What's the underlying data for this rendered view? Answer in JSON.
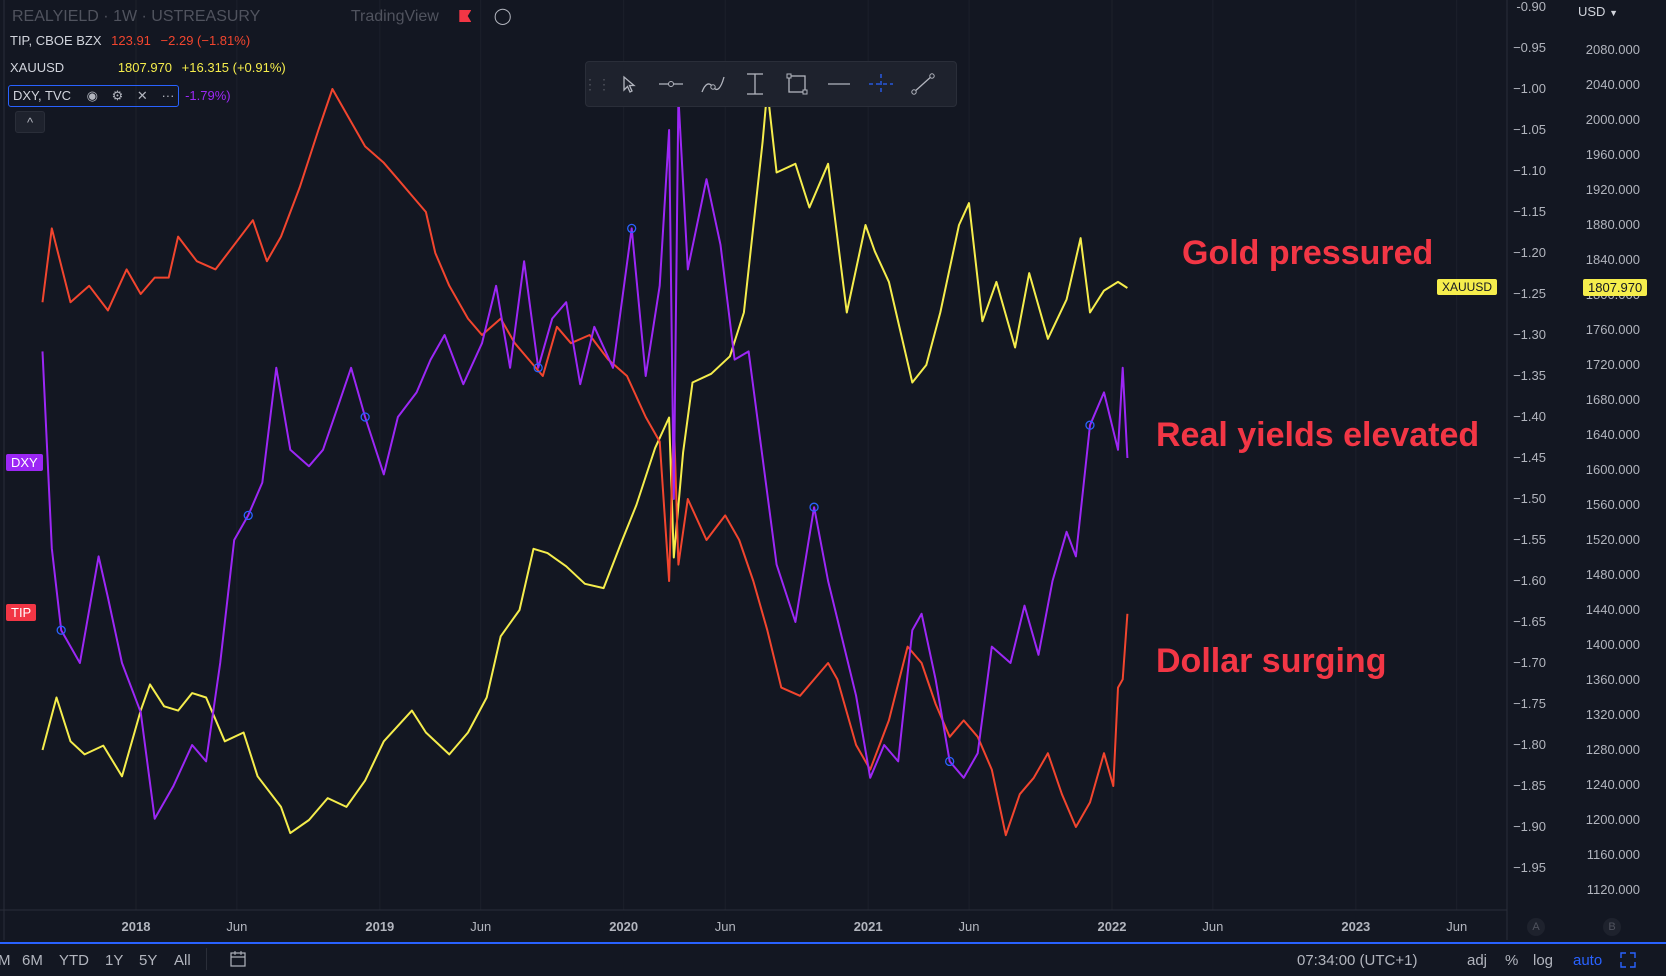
{
  "header": {
    "title": "REALYIELD · 1W · USTREASURY",
    "watermark": "TradingView",
    "tip_legend": {
      "symbol": "TIP, CBOE BZX",
      "price": "123.91",
      "change": "−2.29 (−1.81%)"
    },
    "xau_legend": {
      "symbol": "XAUUSD",
      "price": "1807.970",
      "change": "+16.315 (+0.91%)"
    },
    "dxy_legend": {
      "symbol": "DXY, TVC",
      "change": "-1.79%)"
    },
    "collapse_label": "^"
  },
  "price_axis": {
    "currency": "USD",
    "left_labels": [
      "-0.90",
      "−0.95",
      "−1.00",
      "−1.05",
      "−1.10",
      "−1.15",
      "−1.20",
      "−1.25",
      "−1.30",
      "−1.35",
      "−1.40",
      "−1.45",
      "−1.50",
      "−1.55",
      "−1.60",
      "−1.65",
      "−1.70",
      "−1.75",
      "−1.80",
      "−1.85",
      "−1.90",
      "−1.95"
    ],
    "right_labels": [
      "2080.000",
      "2040.000",
      "2000.000",
      "1960.000",
      "1920.000",
      "1880.000",
      "1840.000",
      "1800.000",
      "1760.000",
      "1720.000",
      "1680.000",
      "1640.000",
      "1600.000",
      "1560.000",
      "1520.000",
      "1480.000",
      "1440.000",
      "1400.000",
      "1360.000",
      "1320.000",
      "1280.000",
      "1240.000",
      "1200.000",
      "1160.000",
      "1120.000"
    ],
    "xau_tag_symbol": "XAUUSD",
    "xau_tag_price": "1807.970",
    "a_label": "A",
    "b_label": "B"
  },
  "time_axis": {
    "labels": [
      {
        "text": "2018",
        "bold": true
      },
      {
        "text": "Jun",
        "bold": false
      },
      {
        "text": "2019",
        "bold": true
      },
      {
        "text": "Jun",
        "bold": false
      },
      {
        "text": "2020",
        "bold": true
      },
      {
        "text": "Jun",
        "bold": false
      },
      {
        "text": "2021",
        "bold": true
      },
      {
        "text": "Jun",
        "bold": false
      },
      {
        "text": "2022",
        "bold": true
      },
      {
        "text": "Jun",
        "bold": false
      },
      {
        "text": "2023",
        "bold": true
      },
      {
        "text": "Jun",
        "bold": false
      }
    ]
  },
  "tags": {
    "dxy": "DXY",
    "tip": "TIP"
  },
  "annotations": {
    "gold": "Gold pressured",
    "real_yields": "Real yields elevated",
    "dollar": "Dollar surging"
  },
  "bottom_bar": {
    "ranges": [
      "M",
      "6M",
      "YTD",
      "1Y",
      "5Y",
      "All"
    ],
    "time": "07:34:00 (UTC+1)",
    "adj": "adj",
    "percent": "%",
    "log": "log",
    "auto": "auto"
  },
  "colors": {
    "background": "#131722",
    "xau": "#f5ed4c",
    "dxy": "#9c27f5",
    "tip": "#f2452e",
    "annotation": "#f23645",
    "accent": "#2962ff"
  },
  "chart_data": {
    "type": "line",
    "x_axis": "date",
    "x_range": [
      "2017-08-14",
      "2023-09-01"
    ],
    "y_left_range": [
      -1.97,
      -0.9
    ],
    "y_right_range": [
      1110,
      2090
    ],
    "series": [
      {
        "name": "XAUUSD",
        "axis": "right",
        "points": [
          [
            "2017-08-14",
            1280
          ],
          [
            "2017-09-04",
            1340
          ],
          [
            "2017-09-25",
            1290
          ],
          [
            "2017-10-16",
            1275
          ],
          [
            "2017-11-13",
            1285
          ],
          [
            "2017-12-11",
            1250
          ],
          [
            "2018-01-08",
            1325
          ],
          [
            "2018-01-22",
            1355
          ],
          [
            "2018-02-12",
            1330
          ],
          [
            "2018-03-05",
            1325
          ],
          [
            "2018-03-26",
            1345
          ],
          [
            "2018-04-16",
            1340
          ],
          [
            "2018-05-14",
            1290
          ],
          [
            "2018-06-11",
            1300
          ],
          [
            "2018-07-02",
            1250
          ],
          [
            "2018-08-06",
            1215
          ],
          [
            "2018-08-20",
            1185
          ],
          [
            "2018-09-17",
            1200
          ],
          [
            "2018-10-15",
            1225
          ],
          [
            "2018-11-12",
            1215
          ],
          [
            "2018-12-10",
            1245
          ],
          [
            "2019-01-07",
            1290
          ],
          [
            "2019-02-18",
            1325
          ],
          [
            "2019-03-11",
            1300
          ],
          [
            "2019-04-15",
            1275
          ],
          [
            "2019-05-13",
            1300
          ],
          [
            "2019-06-10",
            1340
          ],
          [
            "2019-07-01",
            1410
          ],
          [
            "2019-07-29",
            1440
          ],
          [
            "2019-08-19",
            1510
          ],
          [
            "2019-09-09",
            1505
          ],
          [
            "2019-10-07",
            1490
          ],
          [
            "2019-11-04",
            1470
          ],
          [
            "2019-12-02",
            1465
          ],
          [
            "2019-12-30",
            1520
          ],
          [
            "2020-01-20",
            1560
          ],
          [
            "2020-02-17",
            1625
          ],
          [
            "2020-03-09",
            1660
          ],
          [
            "2020-03-16",
            1500
          ],
          [
            "2020-03-30",
            1620
          ],
          [
            "2020-04-13",
            1700
          ],
          [
            "2020-05-11",
            1710
          ],
          [
            "2020-06-08",
            1730
          ],
          [
            "2020-06-29",
            1780
          ],
          [
            "2020-07-27",
            1975
          ],
          [
            "2020-08-03",
            2035
          ],
          [
            "2020-08-17",
            1940
          ],
          [
            "2020-09-14",
            1950
          ],
          [
            "2020-10-05",
            1900
          ],
          [
            "2020-11-02",
            1950
          ],
          [
            "2020-11-30",
            1780
          ],
          [
            "2020-12-28",
            1880
          ],
          [
            "2021-01-11",
            1850
          ],
          [
            "2021-02-01",
            1815
          ],
          [
            "2021-03-08",
            1700
          ],
          [
            "2021-03-29",
            1720
          ],
          [
            "2021-04-19",
            1780
          ],
          [
            "2021-05-17",
            1880
          ],
          [
            "2021-06-01",
            1905
          ],
          [
            "2021-06-21",
            1770
          ],
          [
            "2021-07-12",
            1815
          ],
          [
            "2021-08-09",
            1740
          ],
          [
            "2021-08-30",
            1825
          ],
          [
            "2021-09-27",
            1750
          ],
          [
            "2021-10-25",
            1795
          ],
          [
            "2021-11-15",
            1865
          ],
          [
            "2021-11-29",
            1780
          ],
          [
            "2021-12-20",
            1805
          ],
          [
            "2022-01-10",
            1815
          ],
          [
            "2022-01-24",
            1807.97
          ]
        ]
      },
      {
        "name": "DXY, TVC",
        "axis": "left",
        "points": [
          [
            "2017-08-14",
            -1.32
          ],
          [
            "2017-08-28",
            -1.56
          ],
          [
            "2017-09-11",
            -1.66
          ],
          [
            "2017-10-09",
            -1.7
          ],
          [
            "2017-11-06",
            -1.57
          ],
          [
            "2017-11-20",
            -1.62
          ],
          [
            "2017-12-11",
            -1.7
          ],
          [
            "2018-01-08",
            -1.76
          ],
          [
            "2018-01-29",
            -1.89
          ],
          [
            "2018-02-26",
            -1.85
          ],
          [
            "2018-03-26",
            -1.8
          ],
          [
            "2018-04-16",
            -1.82
          ],
          [
            "2018-05-07",
            -1.7
          ],
          [
            "2018-05-28",
            -1.55
          ],
          [
            "2018-06-18",
            -1.52
          ],
          [
            "2018-07-09",
            -1.48
          ],
          [
            "2018-07-30",
            -1.34
          ],
          [
            "2018-08-20",
            -1.44
          ],
          [
            "2018-09-17",
            -1.46
          ],
          [
            "2018-10-08",
            -1.44
          ],
          [
            "2018-10-29",
            -1.39
          ],
          [
            "2018-11-19",
            -1.34
          ],
          [
            "2018-12-10",
            -1.4
          ],
          [
            "2019-01-07",
            -1.47
          ],
          [
            "2019-01-28",
            -1.4
          ],
          [
            "2019-02-25",
            -1.37
          ],
          [
            "2019-03-18",
            -1.33
          ],
          [
            "2019-04-08",
            -1.3
          ],
          [
            "2019-05-06",
            -1.36
          ],
          [
            "2019-06-03",
            -1.31
          ],
          [
            "2019-06-24",
            -1.24
          ],
          [
            "2019-07-15",
            -1.34
          ],
          [
            "2019-08-05",
            -1.21
          ],
          [
            "2019-08-26",
            -1.34
          ],
          [
            "2019-09-16",
            -1.28
          ],
          [
            "2019-10-07",
            -1.26
          ],
          [
            "2019-10-28",
            -1.36
          ],
          [
            "2019-11-18",
            -1.29
          ],
          [
            "2019-12-16",
            -1.34
          ],
          [
            "2020-01-13",
            -1.17
          ],
          [
            "2020-02-03",
            -1.35
          ],
          [
            "2020-02-24",
            -1.24
          ],
          [
            "2020-03-09",
            -1.05
          ],
          [
            "2020-03-16",
            -1.5
          ],
          [
            "2020-03-23",
            -1.01
          ],
          [
            "2020-04-06",
            -1.22
          ],
          [
            "2020-05-04",
            -1.11
          ],
          [
            "2020-05-25",
            -1.19
          ],
          [
            "2020-06-15",
            -1.33
          ],
          [
            "2020-07-06",
            -1.32
          ],
          [
            "2020-07-27",
            -1.45
          ],
          [
            "2020-08-17",
            -1.58
          ],
          [
            "2020-09-14",
            -1.65
          ],
          [
            "2020-10-12",
            -1.51
          ],
          [
            "2020-11-02",
            -1.6
          ],
          [
            "2020-11-23",
            -1.67
          ],
          [
            "2020-12-14",
            -1.74
          ],
          [
            "2021-01-04",
            -1.84
          ],
          [
            "2021-01-25",
            -1.8
          ],
          [
            "2021-02-15",
            -1.82
          ],
          [
            "2021-03-08",
            -1.66
          ],
          [
            "2021-03-22",
            -1.64
          ],
          [
            "2021-04-12",
            -1.72
          ],
          [
            "2021-05-03",
            -1.82
          ],
          [
            "2021-05-24",
            -1.84
          ],
          [
            "2021-06-14",
            -1.81
          ],
          [
            "2021-07-05",
            -1.68
          ],
          [
            "2021-08-02",
            -1.7
          ],
          [
            "2021-08-23",
            -1.63
          ],
          [
            "2021-09-13",
            -1.69
          ],
          [
            "2021-10-04",
            -1.6
          ],
          [
            "2021-10-25",
            -1.54
          ],
          [
            "2021-11-08",
            -1.57
          ],
          [
            "2021-11-29",
            -1.41
          ],
          [
            "2021-12-20",
            -1.37
          ],
          [
            "2022-01-10",
            -1.44
          ],
          [
            "2022-01-17",
            -1.34
          ],
          [
            "2022-01-24",
            -1.45
          ]
        ]
      },
      {
        "name": "TIP, CBOE BZX",
        "axis": "left",
        "points": [
          [
            "2017-08-14",
            -1.26
          ],
          [
            "2017-08-28",
            -1.17
          ],
          [
            "2017-09-25",
            -1.26
          ],
          [
            "2017-10-23",
            -1.24
          ],
          [
            "2017-11-20",
            -1.27
          ],
          [
            "2017-12-18",
            -1.22
          ],
          [
            "2018-01-08",
            -1.25
          ],
          [
            "2018-01-29",
            -1.23
          ],
          [
            "2018-02-19",
            -1.23
          ],
          [
            "2018-03-05",
            -1.18
          ],
          [
            "2018-04-02",
            -1.21
          ],
          [
            "2018-04-30",
            -1.22
          ],
          [
            "2018-05-28",
            -1.19
          ],
          [
            "2018-06-25",
            -1.16
          ],
          [
            "2018-07-16",
            -1.21
          ],
          [
            "2018-08-06",
            -1.18
          ],
          [
            "2018-09-03",
            -1.12
          ],
          [
            "2018-10-01",
            -1.05
          ],
          [
            "2018-10-22",
            -1.0
          ],
          [
            "2018-11-12",
            -1.03
          ],
          [
            "2018-12-10",
            -1.07
          ],
          [
            "2019-01-07",
            -1.09
          ],
          [
            "2019-01-28",
            -1.11
          ],
          [
            "2019-02-18",
            -1.13
          ],
          [
            "2019-03-11",
            -1.15
          ],
          [
            "2019-03-25",
            -1.2
          ],
          [
            "2019-04-15",
            -1.24
          ],
          [
            "2019-05-13",
            -1.28
          ],
          [
            "2019-06-03",
            -1.3
          ],
          [
            "2019-07-01",
            -1.28
          ],
          [
            "2019-07-22",
            -1.31
          ],
          [
            "2019-08-12",
            -1.33
          ],
          [
            "2019-09-02",
            -1.35
          ],
          [
            "2019-09-23",
            -1.29
          ],
          [
            "2019-10-14",
            -1.31
          ],
          [
            "2019-11-11",
            -1.3
          ],
          [
            "2019-12-09",
            -1.33
          ],
          [
            "2020-01-06",
            -1.35
          ],
          [
            "2020-02-03",
            -1.4
          ],
          [
            "2020-02-24",
            -1.43
          ],
          [
            "2020-03-09",
            -1.6
          ],
          [
            "2020-03-16",
            -1.4
          ],
          [
            "2020-03-23",
            -1.58
          ],
          [
            "2020-04-06",
            -1.5
          ],
          [
            "2020-05-04",
            -1.55
          ],
          [
            "2020-06-01",
            -1.52
          ],
          [
            "2020-06-22",
            -1.55
          ],
          [
            "2020-07-13",
            -1.6
          ],
          [
            "2020-08-03",
            -1.66
          ],
          [
            "2020-08-24",
            -1.73
          ],
          [
            "2020-09-21",
            -1.74
          ],
          [
            "2020-10-12",
            -1.72
          ],
          [
            "2020-11-02",
            -1.7
          ],
          [
            "2020-11-16",
            -1.72
          ],
          [
            "2020-12-14",
            -1.8
          ],
          [
            "2021-01-04",
            -1.83
          ],
          [
            "2021-02-01",
            -1.77
          ],
          [
            "2021-03-01",
            -1.68
          ],
          [
            "2021-03-22",
            -1.7
          ],
          [
            "2021-04-12",
            -1.75
          ],
          [
            "2021-05-03",
            -1.79
          ],
          [
            "2021-05-24",
            -1.77
          ],
          [
            "2021-06-14",
            -1.79
          ],
          [
            "2021-07-05",
            -1.83
          ],
          [
            "2021-07-26",
            -1.91
          ],
          [
            "2021-08-16",
            -1.86
          ],
          [
            "2021-09-06",
            -1.84
          ],
          [
            "2021-09-27",
            -1.81
          ],
          [
            "2021-10-18",
            -1.86
          ],
          [
            "2021-11-08",
            -1.9
          ],
          [
            "2021-11-29",
            -1.87
          ],
          [
            "2021-12-20",
            -1.81
          ],
          [
            "2022-01-03",
            -1.85
          ],
          [
            "2022-01-10",
            -1.73
          ],
          [
            "2022-01-17",
            -1.72
          ],
          [
            "2022-01-24",
            -1.64
          ]
        ]
      }
    ]
  }
}
